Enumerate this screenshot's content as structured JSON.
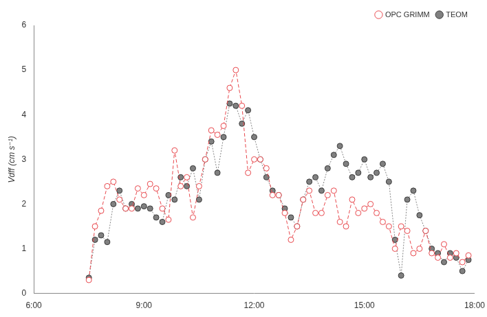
{
  "chart_data": {
    "type": "line",
    "y_label": "Vdff (cm s⁻¹)",
    "x": [
      7.5,
      7.667,
      7.833,
      8,
      8.167,
      8.333,
      8.5,
      8.667,
      8.833,
      9,
      9.167,
      9.333,
      9.5,
      9.667,
      9.833,
      10,
      10.167,
      10.333,
      10.5,
      10.667,
      10.833,
      11,
      11.167,
      11.333,
      11.5,
      11.667,
      11.833,
      12,
      12.167,
      12.333,
      12.5,
      12.667,
      12.833,
      13,
      13.167,
      13.333,
      13.5,
      13.667,
      13.833,
      14,
      14.167,
      14.333,
      14.5,
      14.667,
      14.833,
      15,
      15.167,
      15.333,
      15.5,
      15.667,
      15.833,
      16,
      16.167,
      16.333,
      16.5,
      16.667,
      16.833,
      17,
      17.167,
      17.333,
      17.5,
      17.667,
      17.833
    ],
    "series": [
      {
        "name": "OPC GRIMM",
        "color": "#e8474c",
        "marker": "circle_open",
        "line_style": "dashed",
        "values": [
          0.3,
          1.5,
          1.85,
          2.4,
          2.5,
          2.1,
          1.9,
          1.9,
          2.35,
          2.2,
          2.45,
          2.35,
          1.9,
          1.65,
          3.2,
          2.4,
          2.6,
          1.7,
          2.4,
          3.0,
          3.65,
          3.55,
          3.75,
          4.6,
          5.0,
          4.2,
          2.7,
          3.0,
          3.0,
          2.8,
          2.2,
          2.2,
          1.8,
          1.2,
          1.5,
          2.1,
          2.3,
          1.8,
          1.8,
          2.2,
          2.3,
          1.6,
          1.5,
          2.1,
          1.8,
          1.9,
          2.0,
          1.8,
          1.6,
          1.5,
          1.0,
          1.5,
          1.4,
          0.9,
          1.0,
          1.4,
          0.9,
          0.8,
          1.1,
          0.8,
          0.9,
          0.7,
          0.85
        ]
      },
      {
        "name": "TEOM",
        "color": "#808080",
        "marker": "circle",
        "line_style": "dotted",
        "values": [
          0.35,
          1.2,
          1.3,
          1.15,
          2.0,
          2.3,
          1.9,
          2.0,
          1.9,
          1.95,
          1.9,
          1.7,
          1.6,
          2.2,
          2.1,
          2.6,
          2.4,
          2.8,
          2.1,
          3.0,
          3.4,
          2.7,
          3.5,
          4.25,
          4.2,
          3.8,
          4.1,
          3.5,
          3.0,
          2.6,
          2.3,
          2.2,
          1.9,
          1.7,
          1.5,
          2.1,
          2.5,
          2.6,
          2.3,
          2.8,
          3.1,
          3.3,
          2.9,
          2.6,
          2.7,
          3.0,
          2.6,
          2.7,
          2.9,
          2.5,
          1.2,
          0.4,
          2.1,
          2.3,
          1.75,
          1.4,
          1.0,
          0.9,
          0.7,
          0.9,
          0.8,
          0.5,
          0.75
        ]
      }
    ],
    "xlim": [
      6,
      18
    ],
    "xticks": [
      {
        "value": 6,
        "label": "6:00"
      },
      {
        "value": 9,
        "label": "9:00"
      },
      {
        "value": 12,
        "label": "12:00"
      },
      {
        "value": 15,
        "label": "15:00"
      },
      {
        "value": 18,
        "label": "18:00"
      }
    ],
    "ylim": [
      0,
      6
    ],
    "yticks": [
      0,
      1,
      2,
      3,
      4,
      5,
      6
    ],
    "grid": false,
    "legend": "top-right"
  }
}
